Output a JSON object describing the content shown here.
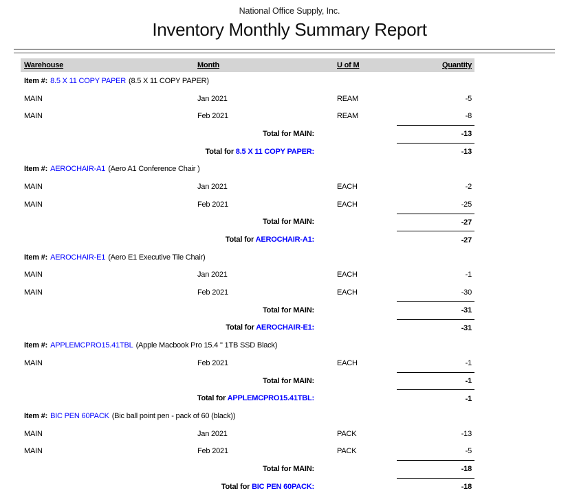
{
  "report": {
    "company": "National Office Supply, Inc.",
    "title": "Inventory Monthly Summary Report",
    "labels": {
      "item_prefix": "Item #:",
      "total_prefix": "Total for",
      "colon": ":"
    },
    "columns": [
      {
        "label": "Warehouse"
      },
      {
        "label": "Month"
      },
      {
        "label": "U of M"
      },
      {
        "label": "Quantity"
      }
    ],
    "colors": {
      "link_blue": "#0000ff",
      "header_bg": "#d4d4d4",
      "rule_dark": "#9a9a9a",
      "rule_light": "#c3c3c3"
    },
    "sections": [
      {
        "item_code": "8.5 X 11 COPY PAPER",
        "item_desc": "(8.5 X 11 COPY PAPER)",
        "rows": [
          {
            "warehouse": "MAIN",
            "month": "Jan 2021",
            "uom": "REAM",
            "qty": "-5"
          },
          {
            "warehouse": "MAIN",
            "month": "Feb 2021",
            "uom": "REAM",
            "qty": "-8"
          }
        ],
        "warehouse_total_label": "Total for MAIN:",
        "warehouse_total": "-13",
        "item_total": "-13"
      },
      {
        "item_code": "AEROCHAIR-A1",
        "item_desc": "(Aero A1 Conference Chair )",
        "rows": [
          {
            "warehouse": "MAIN",
            "month": "Jan 2021",
            "uom": "EACH",
            "qty": "-2"
          },
          {
            "warehouse": "MAIN",
            "month": "Feb 2021",
            "uom": "EACH",
            "qty": "-25"
          }
        ],
        "warehouse_total_label": "Total for MAIN:",
        "warehouse_total": "-27",
        "item_total": "-27"
      },
      {
        "item_code": "AEROCHAIR-E1",
        "item_desc": "(Aero E1 Executive Tile Chair)",
        "rows": [
          {
            "warehouse": "MAIN",
            "month": "Jan 2021",
            "uom": "EACH",
            "qty": "-1"
          },
          {
            "warehouse": "MAIN",
            "month": "Feb 2021",
            "uom": "EACH",
            "qty": "-30"
          }
        ],
        "warehouse_total_label": "Total for MAIN:",
        "warehouse_total": "-31",
        "item_total": "-31"
      },
      {
        "item_code": "APPLEMCPRO15.41TBL",
        "item_desc": "(Apple Macbook Pro 15.4 \" 1TB SSD Black)",
        "rows": [
          {
            "warehouse": "MAIN",
            "month": "Feb 2021",
            "uom": "EACH",
            "qty": "-1"
          }
        ],
        "warehouse_total_label": "Total for MAIN:",
        "warehouse_total": "-1",
        "item_total": "-1"
      },
      {
        "item_code": "BIC PEN 60PACK",
        "item_desc": "(Bic ball point pen - pack of 60 (black))",
        "rows": [
          {
            "warehouse": "MAIN",
            "month": "Jan 2021",
            "uom": "PACK",
            "qty": "-13"
          },
          {
            "warehouse": "MAIN",
            "month": "Feb 2021",
            "uom": "PACK",
            "qty": "-5"
          }
        ],
        "warehouse_total_label": "Total for MAIN:",
        "warehouse_total": "-18",
        "item_total": "-18"
      }
    ]
  }
}
